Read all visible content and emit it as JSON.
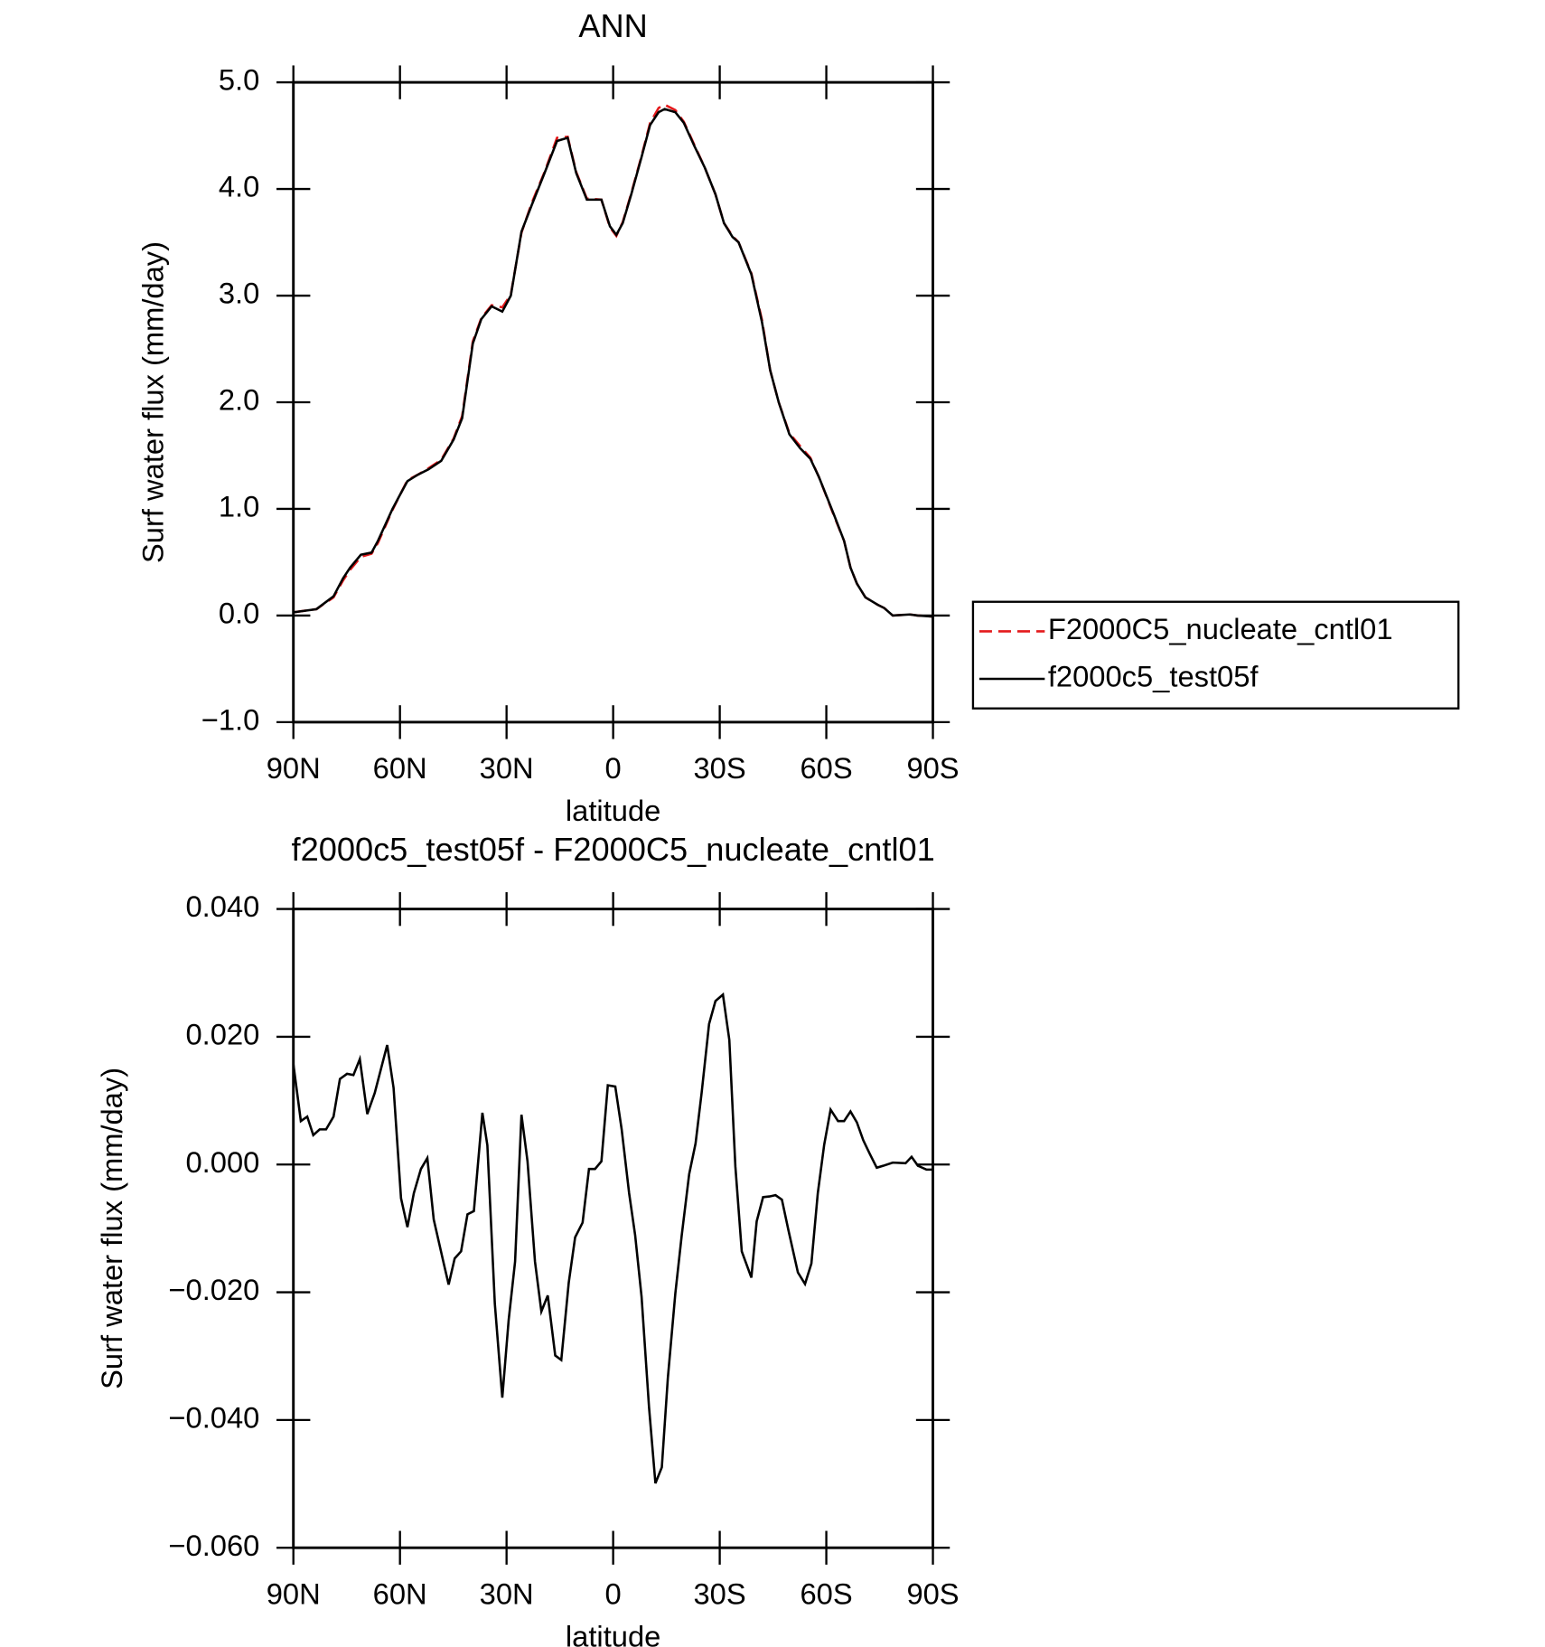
{
  "chart_data": [
    {
      "type": "line",
      "title": "ANN",
      "x_label": "latitude",
      "y_label": "Surf water flux (mm/day)",
      "x": [
        90,
        83.5,
        78.7,
        76.0,
        74.0,
        71.0,
        68.0,
        66.2,
        62.1,
        59.7,
        57.9,
        55.0,
        52.0,
        48.4,
        44.9,
        42.5,
        39.5,
        37.1,
        34.2,
        31.2,
        28.8,
        25.8,
        22.9,
        19.3,
        15.8,
        12.8,
        10.4,
        7.4,
        3.3,
        0.9,
        -0.9,
        -2.7,
        -5.1,
        -8.0,
        -10.4,
        -12.8,
        -14.5,
        -17.5,
        -19.9,
        -22.9,
        -25.8,
        -28.8,
        -31.2,
        -33.6,
        -35.3,
        -38.9,
        -41.9,
        -44.2,
        -46.6,
        -49.6,
        -52.6,
        -55.5,
        -57.9,
        -62.1,
        -65.0,
        -66.8,
        -68.6,
        -71.0,
        -74.5,
        -76.3,
        -78.7,
        -83.5,
        -85.8,
        -90
      ],
      "series": [
        {
          "name": "F2000C5_nucleate_cntl01",
          "color": "#e41a1c",
          "dashed": true,
          "values": [
            0.03,
            0.06,
            0.17,
            0.33,
            0.43,
            0.55,
            0.58,
            0.68,
            0.99,
            1.15,
            1.27,
            1.32,
            1.38,
            1.46,
            1.66,
            1.87,
            2.57,
            2.79,
            2.91,
            2.89,
            3.01,
            3.59,
            3.87,
            4.16,
            4.48,
            4.49,
            4.16,
            3.91,
            3.9,
            3.64,
            3.56,
            3.69,
            3.96,
            4.31,
            4.62,
            4.76,
            4.79,
            4.74,
            4.63,
            4.41,
            4.2,
            3.95,
            3.68,
            3.56,
            3.5,
            3.21,
            2.77,
            2.3,
            2.0,
            1.71,
            1.59,
            1.48,
            1.3,
            0.94,
            0.7,
            0.45,
            0.3,
            0.17,
            0.1,
            0.07,
            0.0,
            0.01,
            0.0,
            -0.01
          ]
        },
        {
          "name": "f2000c5_test05f",
          "color": "#000000",
          "dashed": false,
          "values": [
            0.03,
            0.06,
            0.18,
            0.35,
            0.45,
            0.57,
            0.59,
            0.7,
            1.0,
            1.15,
            1.26,
            1.32,
            1.37,
            1.45,
            1.65,
            1.85,
            2.55,
            2.78,
            2.9,
            2.85,
            3.0,
            3.6,
            3.85,
            4.15,
            4.45,
            4.48,
            4.15,
            3.9,
            3.9,
            3.65,
            3.57,
            3.68,
            3.95,
            4.3,
            4.6,
            4.72,
            4.75,
            4.72,
            4.62,
            4.4,
            4.2,
            3.95,
            3.68,
            3.55,
            3.5,
            3.2,
            2.75,
            2.3,
            2.0,
            1.7,
            1.57,
            1.47,
            1.3,
            0.95,
            0.7,
            0.45,
            0.3,
            0.17,
            0.1,
            0.07,
            0.0,
            0.01,
            0.0,
            -0.01
          ]
        }
      ],
      "xlim": [
        90,
        -90
      ],
      "xticks": [
        {
          "value": 90,
          "label": "90N"
        },
        {
          "value": 60,
          "label": "60N"
        },
        {
          "value": 30,
          "label": "30N"
        },
        0,
        {
          "value": -30,
          "label": "30S"
        },
        {
          "value": -60,
          "label": "60S"
        },
        {
          "value": -90,
          "label": "90S"
        }
      ],
      "ylim": [
        -1,
        5
      ],
      "yticks": [
        {
          "value": -1,
          "label": "−1.0"
        },
        {
          "value": 0,
          "label": "0.0"
        },
        {
          "value": 1,
          "label": "1.0"
        },
        {
          "value": 2,
          "label": "2.0"
        },
        {
          "value": 3,
          "label": "3.0"
        },
        {
          "value": 4,
          "label": "4.0"
        },
        {
          "value": 5,
          "label": "5.0"
        }
      ],
      "legend": "right"
    },
    {
      "type": "line",
      "title": "f2000c5_test05f - F2000C5_nucleate_cntl01",
      "x_label": "latitude",
      "y_label": "Surf water flux (mm/day)",
      "x": [
        90,
        87.9,
        86.1,
        84.4,
        82.6,
        80.8,
        78.7,
        76.9,
        74.9,
        73.1,
        71.3,
        69.2,
        67.1,
        63.6,
        61.8,
        59.7,
        57.9,
        56.1,
        54.1,
        52.3,
        50.5,
        47.8,
        46.3,
        44.6,
        42.8,
        41.0,
        39.2,
        36.8,
        35.4,
        33.3,
        31.2,
        29.4,
        27.6,
        25.8,
        24.1,
        22.0,
        20.2,
        18.4,
        16.3,
        14.6,
        12.5,
        10.7,
        8.6,
        6.8,
        5.1,
        3.3,
        1.5,
        -0.6,
        -2.4,
        -4.5,
        -6.2,
        -8.0,
        -10.1,
        -11.9,
        -13.7,
        -15.4,
        -17.5,
        -19.3,
        -21.4,
        -23.2,
        -24.9,
        -27.0,
        -28.8,
        -30.9,
        -32.7,
        -34.4,
        -36.2,
        -38.9,
        -40.4,
        -42.2,
        -44.0,
        -45.7,
        -47.5,
        -49.3,
        -52.0,
        -54.0,
        -55.8,
        -57.6,
        -59.4,
        -61.2,
        -63.3,
        -65.0,
        -66.8,
        -68.6,
        -70.4,
        -72.2,
        -74.2,
        -76.0,
        -78.7,
        -82.3,
        -84.0,
        -85.8,
        -88.2,
        -90
      ],
      "values": [
        0.0157,
        0.0068,
        0.0075,
        0.0046,
        0.0055,
        0.0055,
        0.0075,
        0.0134,
        0.0142,
        0.014,
        0.0165,
        0.0079,
        0.0112,
        0.0187,
        0.012,
        -0.0053,
        -0.0098,
        -0.0045,
        -0.0007,
        0.001,
        -0.0086,
        -0.0152,
        -0.0188,
        -0.0147,
        -0.0136,
        -0.0078,
        -0.0073,
        0.0081,
        0.003,
        -0.0218,
        -0.0365,
        -0.0243,
        -0.0152,
        0.0078,
        0.0005,
        -0.0152,
        -0.023,
        -0.0205,
        -0.0299,
        -0.0306,
        -0.0185,
        -0.0114,
        -0.0091,
        -0.0007,
        -0.0007,
        0.0005,
        0.0124,
        0.0122,
        0.0055,
        -0.0045,
        -0.0111,
        -0.0207,
        -0.038,
        -0.0499,
        -0.0474,
        -0.0334,
        -0.0202,
        -0.0111,
        -0.0015,
        0.0033,
        0.0112,
        0.022,
        0.0256,
        0.0266,
        0.0195,
        -0.0003,
        -0.0136,
        -0.0177,
        -0.0089,
        -0.0051,
        -0.005,
        -0.0048,
        -0.0055,
        -0.0102,
        -0.0169,
        -0.0187,
        -0.0155,
        -0.0045,
        0.0031,
        0.0086,
        0.0068,
        0.0068,
        0.0083,
        0.0066,
        0.0038,
        0.0017,
        -0.0005,
        -0.0002,
        0.0003,
        0.0002,
        0.0012,
        -0.0002,
        -0.0008,
        -0.0008
      ],
      "color": "#000000",
      "xlim": [
        90,
        -90
      ],
      "xticks": [
        {
          "value": 90,
          "label": "90N"
        },
        {
          "value": 60,
          "label": "60N"
        },
        {
          "value": 30,
          "label": "30N"
        },
        0,
        {
          "value": -30,
          "label": "30S"
        },
        {
          "value": -60,
          "label": "60S"
        },
        {
          "value": -90,
          "label": "90S"
        }
      ],
      "ylim": [
        -0.06,
        0.04
      ],
      "yticks": [
        {
          "value": -0.06,
          "label": "−0.060"
        },
        {
          "value": -0.04,
          "label": "−0.040"
        },
        {
          "value": -0.02,
          "label": "−0.020"
        },
        {
          "value": 0,
          "label": "0.000"
        },
        {
          "value": 0.02,
          "label": "0.020"
        },
        {
          "value": 0.04,
          "label": "0.040"
        }
      ]
    }
  ]
}
